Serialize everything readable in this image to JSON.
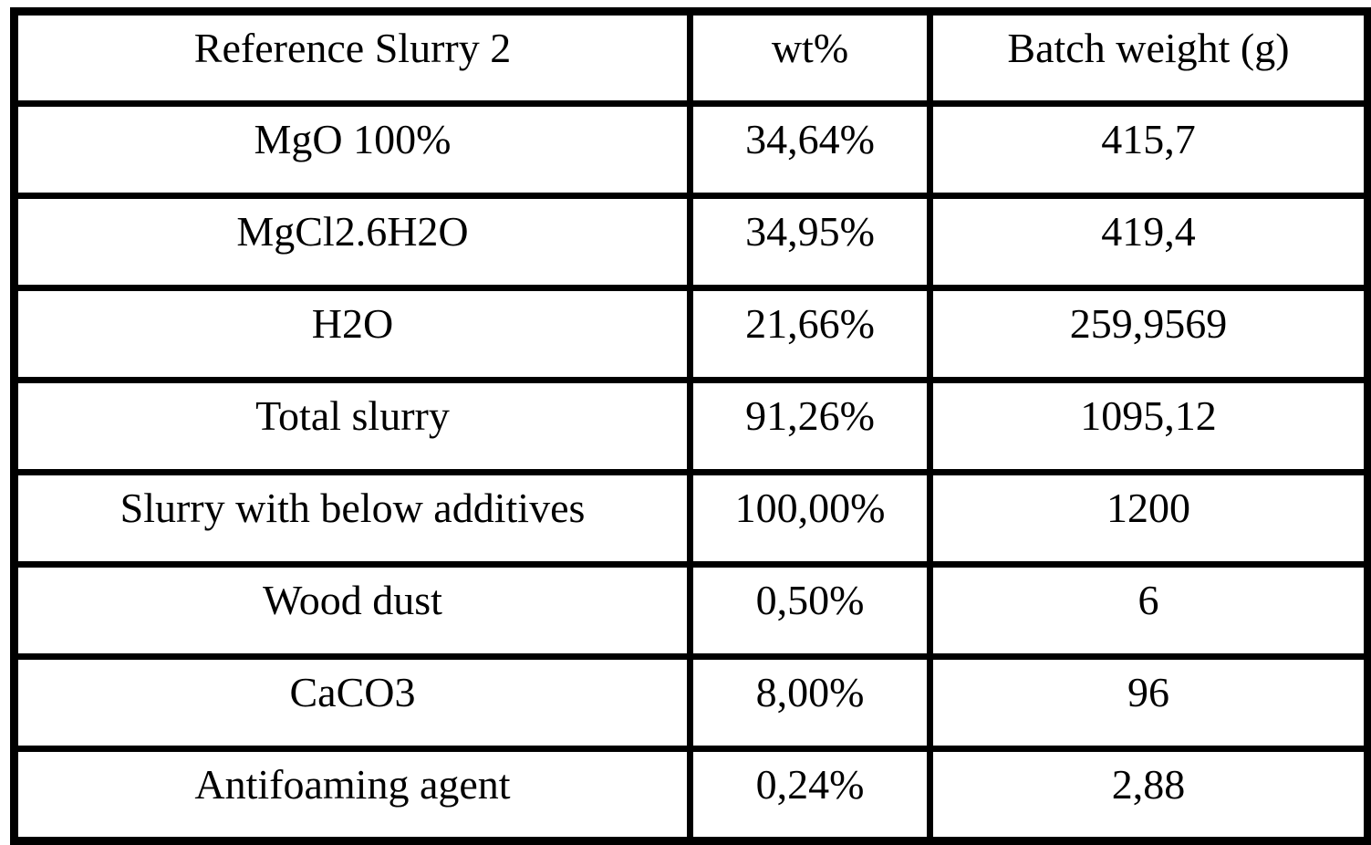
{
  "table": {
    "headers": [
      "Reference Slurry 2",
      "wt%",
      "Batch weight (g)"
    ],
    "rows": [
      [
        "MgO 100%",
        "34,64%",
        "415,7"
      ],
      [
        "MgCl2.6H2O",
        "34,95%",
        "419,4"
      ],
      [
        "H2O",
        "21,66%",
        "259,9569"
      ],
      [
        "Total slurry",
        "91,26%",
        "1095,12"
      ],
      [
        "Slurry with below additives",
        "100,00%",
        "1200"
      ],
      [
        "Wood dust",
        "0,50%",
        "6"
      ],
      [
        "CaCO3",
        "8,00%",
        "96"
      ],
      [
        "Antifoaming agent",
        "0,24%",
        "2,88"
      ]
    ]
  },
  "colors": {
    "border": "#000000",
    "text": "#000000",
    "background": "#ffffff"
  }
}
